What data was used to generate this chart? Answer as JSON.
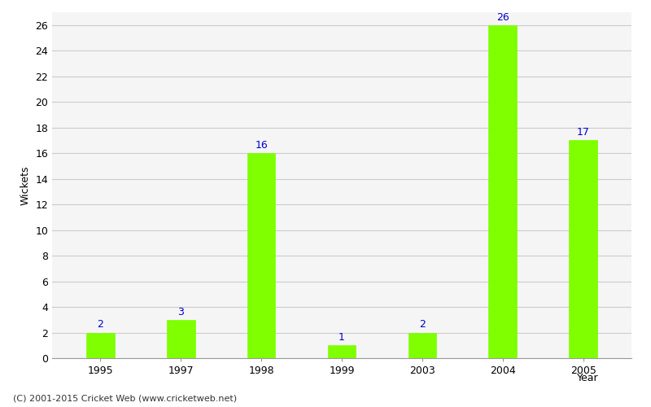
{
  "years": [
    "1995",
    "1997",
    "1998",
    "1999",
    "2003",
    "2004",
    "2005"
  ],
  "values": [
    2,
    3,
    16,
    1,
    2,
    26,
    17
  ],
  "bar_color": "#7fff00",
  "bar_edge_color": "#7fff00",
  "label_color": "#0000cc",
  "ylabel": "Wickets",
  "xlabel_right": "Year",
  "ylim": [
    0,
    27
  ],
  "yticks": [
    0,
    2,
    4,
    6,
    8,
    10,
    12,
    14,
    16,
    18,
    20,
    22,
    24,
    26
  ],
  "grid_color": "#cccccc",
  "plot_bg_color": "#f5f5f5",
  "footer": "(C) 2001-2015 Cricket Web (www.cricketweb.net)",
  "label_fontsize": 9,
  "axis_label_fontsize": 9,
  "tick_fontsize": 9,
  "footer_fontsize": 8,
  "bar_width": 0.35
}
